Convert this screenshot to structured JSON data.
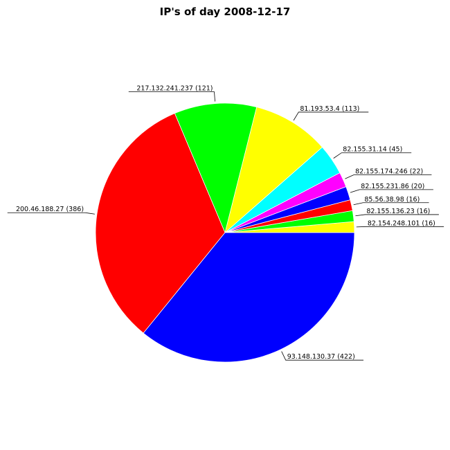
{
  "chart_data": {
    "type": "pie",
    "title": "IP's of day 2008-12-17",
    "start_angle_deg": 0,
    "direction": "counterclockwise",
    "slices": [
      {
        "label": "82.154.248.101 (16)",
        "ip": "82.154.248.101",
        "value": 16,
        "color": "#ffff00"
      },
      {
        "label": "82.155.136.23 (16)",
        "ip": "82.155.136.23",
        "value": 16,
        "color": "#00ff00"
      },
      {
        "label": "85.56.38.98 (16)",
        "ip": "85.56.38.98",
        "value": 16,
        "color": "#ff0000"
      },
      {
        "label": "82.155.231.86 (20)",
        "ip": "82.155.231.86",
        "value": 20,
        "color": "#0000ff"
      },
      {
        "label": "82.155.174.246 (22)",
        "ip": "82.155.174.246",
        "value": 22,
        "color": "#ff00ff"
      },
      {
        "label": "82.155.31.14 (45)",
        "ip": "82.155.31.14",
        "value": 45,
        "color": "#00ffff"
      },
      {
        "label": "81.193.53.4 (113)",
        "ip": "81.193.53.4",
        "value": 113,
        "color": "#ffff00"
      },
      {
        "label": "217.132.241.237 (121)",
        "ip": "217.132.241.237",
        "value": 121,
        "color": "#00ff00"
      },
      {
        "label": "200.46.188.27 (386)",
        "ip": "200.46.188.27",
        "value": 386,
        "color": "#ff0000"
      },
      {
        "label": "93.148.130.37 (422)",
        "ip": "93.148.130.37",
        "value": 422,
        "color": "#0000ff"
      }
    ]
  }
}
